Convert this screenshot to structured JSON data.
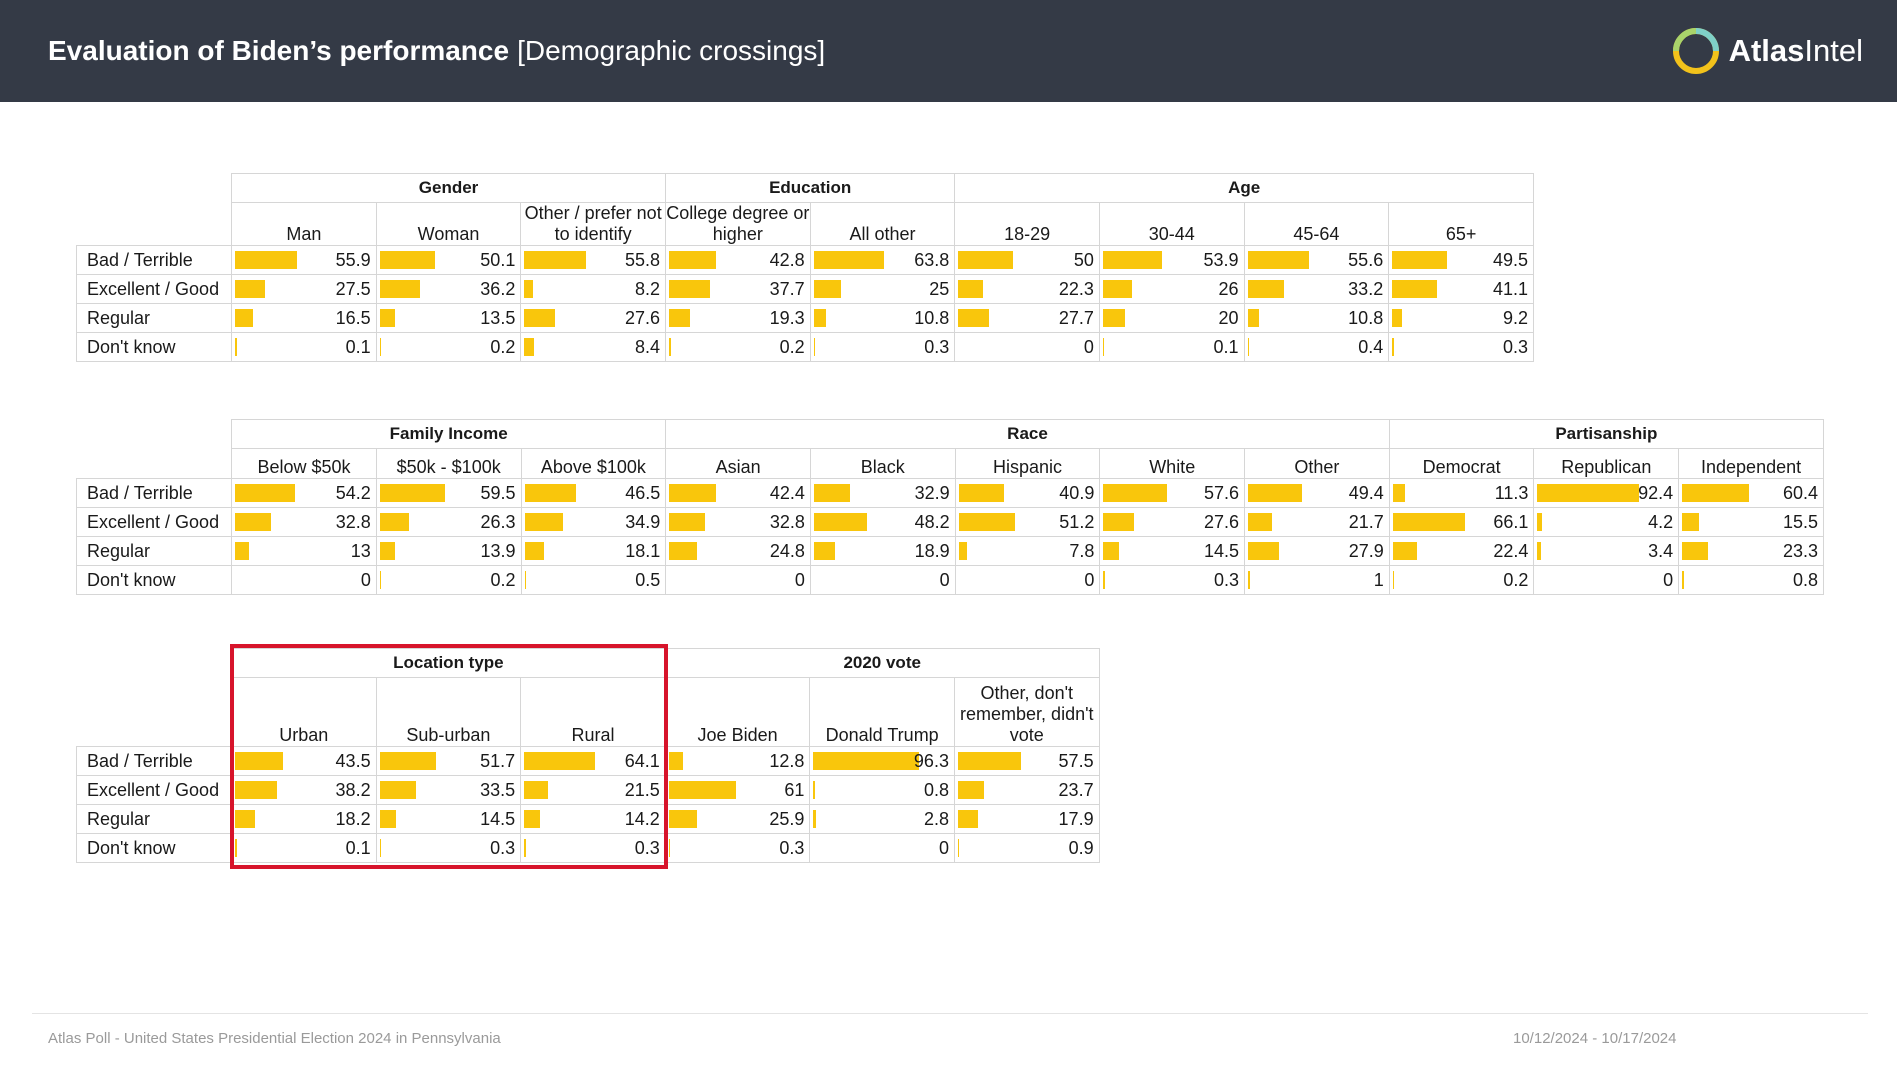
{
  "header": {
    "title": "Evaluation of Biden’s performance",
    "subtitle": "[Demographic crossings]",
    "brand_bold": "Atlas",
    "brand_light": "Intel"
  },
  "footer": {
    "source": "Atlas Poll - United States Presidential Election 2024 in Pennsylvania",
    "dates": "10/12/2024 - 10/17/2024"
  },
  "colors": {
    "header_bg": "#343a46",
    "bar": "#f9c60c",
    "highlight": "#d7142b"
  },
  "chart_data": [
    {
      "type": "table",
      "rows": [
        "Bad / Terrible",
        "Excellent / Good",
        "Regular",
        "Don't know"
      ],
      "groups": [
        {
          "name": "Gender",
          "columns": [
            "Man",
            "Woman",
            "Other / prefer not to identify"
          ]
        },
        {
          "name": "Education",
          "columns": [
            "College degree or higher",
            "All other"
          ]
        },
        {
          "name": "Age",
          "columns": [
            "18-29",
            "30-44",
            "45-64",
            "65+"
          ]
        }
      ],
      "values": [
        [
          55.9,
          50.1,
          55.8,
          42.8,
          63.8,
          50,
          53.9,
          55.6,
          49.5
        ],
        [
          27.5,
          36.2,
          8.2,
          37.7,
          25,
          22.3,
          26,
          33.2,
          41.1
        ],
        [
          16.5,
          13.5,
          27.6,
          19.3,
          10.8,
          27.7,
          20,
          10.8,
          9.2
        ],
        [
          0.1,
          0.2,
          8.4,
          0.2,
          0.3,
          0,
          0.1,
          0.4,
          0.3
        ]
      ]
    },
    {
      "type": "table",
      "rows": [
        "Bad / Terrible",
        "Excellent / Good",
        "Regular",
        "Don't know"
      ],
      "groups": [
        {
          "name": "Family Income",
          "columns": [
            "Below $50k",
            "$50k - $100k",
            "Above $100k"
          ]
        },
        {
          "name": "Race",
          "columns": [
            "Asian",
            "Black",
            "Hispanic",
            "White",
            "Other"
          ]
        },
        {
          "name": "Partisanship",
          "columns": [
            "Democrat",
            "Republican",
            "Independent"
          ]
        }
      ],
      "values": [
        [
          54.2,
          59.5,
          46.5,
          42.4,
          32.9,
          40.9,
          57.6,
          49.4,
          11.3,
          92.4,
          60.4
        ],
        [
          32.8,
          26.3,
          34.9,
          32.8,
          48.2,
          51.2,
          27.6,
          21.7,
          66.1,
          4.2,
          15.5
        ],
        [
          13,
          13.9,
          18.1,
          24.8,
          18.9,
          7.8,
          14.5,
          27.9,
          22.4,
          3.4,
          23.3
        ],
        [
          0,
          0.2,
          0.5,
          0,
          0,
          0,
          0.3,
          1,
          0.2,
          0,
          0.8
        ]
      ]
    },
    {
      "type": "table",
      "rows": [
        "Bad / Terrible",
        "Excellent / Good",
        "Regular",
        "Don't know"
      ],
      "groups": [
        {
          "name": "Location type",
          "columns": [
            "Urban",
            "Sub-urban",
            "Rural"
          ],
          "highlighted": true
        },
        {
          "name": "2020 vote",
          "columns": [
            "Joe Biden",
            "Donald Trump",
            "Other, don't remember, didn't vote"
          ]
        }
      ],
      "values": [
        [
          43.5,
          51.7,
          64.1,
          12.8,
          96.3,
          57.5
        ],
        [
          38.2,
          33.5,
          21.5,
          61,
          0.8,
          23.7
        ],
        [
          18.2,
          14.5,
          14.2,
          25.9,
          2.8,
          17.9
        ],
        [
          0.1,
          0.3,
          0.3,
          0.3,
          0,
          0.9
        ]
      ]
    }
  ]
}
